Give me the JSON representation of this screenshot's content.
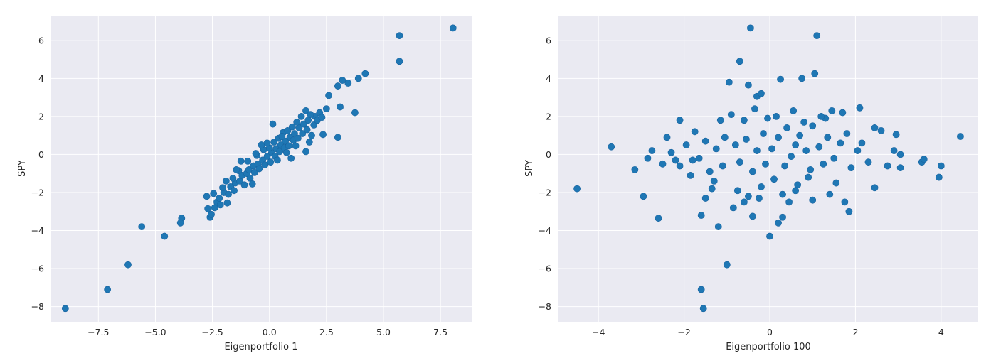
{
  "chart_data": [
    {
      "type": "scatter",
      "xlabel": "Eigenportfolio 1",
      "ylabel": "SPY",
      "xlim": [
        -9.6,
        8.9
      ],
      "ylim": [
        -8.8,
        7.3
      ],
      "xticks": [
        -7.5,
        -5.0,
        -2.5,
        0.0,
        2.5,
        5.0,
        7.5
      ],
      "xtick_labels": [
        "−7.5",
        "−5.0",
        "−2.5",
        "0.0",
        "2.5",
        "5.0",
        "7.5"
      ],
      "yticks": [
        -8,
        -6,
        -4,
        -2,
        0,
        2,
        4,
        6
      ],
      "ytick_labels": [
        "−8",
        "−6",
        "−4",
        "−2",
        "0",
        "2",
        "4",
        "6"
      ],
      "grid": true,
      "color": "#1f77b4",
      "points": [
        [
          -8.95,
          -8.1
        ],
        [
          -7.1,
          -7.1
        ],
        [
          -6.2,
          -5.8
        ],
        [
          -5.6,
          -3.8
        ],
        [
          -4.6,
          -4.3
        ],
        [
          -3.85,
          -3.35
        ],
        [
          -3.9,
          -3.6
        ],
        [
          -2.7,
          -2.85
        ],
        [
          -2.6,
          -3.3
        ],
        [
          -2.55,
          -3.15
        ],
        [
          -2.4,
          -2.8
        ],
        [
          -2.3,
          -2.5
        ],
        [
          -2.2,
          -2.3
        ],
        [
          -2.0,
          -2.0
        ],
        [
          -1.8,
          -2.1
        ],
        [
          -1.7,
          -1.7
        ],
        [
          -1.5,
          -1.5
        ],
        [
          -1.3,
          -1.4
        ],
        [
          -1.2,
          -1.1
        ],
        [
          -1.0,
          -1.0
        ],
        [
          -0.9,
          -0.8
        ],
        [
          -0.7,
          -0.6
        ],
        [
          -0.5,
          -0.5
        ],
        [
          -0.3,
          -0.3
        ],
        [
          -0.1,
          -0.1
        ],
        [
          0.1,
          0.1
        ],
        [
          0.3,
          0.3
        ],
        [
          0.5,
          0.5
        ],
        [
          0.7,
          0.7
        ],
        [
          0.9,
          0.9
        ],
        [
          1.1,
          1.1
        ],
        [
          1.3,
          1.4
        ],
        [
          1.5,
          1.6
        ],
        [
          1.7,
          1.8
        ],
        [
          2.0,
          2.0
        ],
        [
          2.2,
          2.2
        ],
        [
          2.5,
          2.4
        ],
        [
          2.6,
          3.1
        ],
        [
          3.0,
          0.9
        ],
        [
          3.1,
          2.5
        ],
        [
          3.2,
          3.9
        ],
        [
          3.45,
          3.75
        ],
        [
          3.0,
          3.6
        ],
        [
          3.75,
          2.2
        ],
        [
          3.9,
          4.0
        ],
        [
          4.2,
          4.25
        ],
        [
          5.7,
          6.25
        ],
        [
          5.7,
          4.9
        ],
        [
          8.05,
          6.65
        ],
        [
          -2.75,
          -2.2
        ],
        [
          -2.15,
          -2.65
        ],
        [
          -2.05,
          -1.75
        ],
        [
          -1.85,
          -2.55
        ],
        [
          -1.6,
          -1.25
        ],
        [
          -1.55,
          -1.9
        ],
        [
          -1.35,
          -0.85
        ],
        [
          -1.1,
          -1.6
        ],
        [
          -0.95,
          -0.35
        ],
        [
          -0.85,
          -1.25
        ],
        [
          -0.65,
          -0.95
        ],
        [
          -0.55,
          -0.05
        ],
        [
          -0.45,
          -0.75
        ],
        [
          -0.25,
          0.25
        ],
        [
          -0.2,
          -0.55
        ],
        [
          0.0,
          0.35
        ],
        [
          0.05,
          -0.4
        ],
        [
          0.2,
          0.65
        ],
        [
          0.25,
          -0.1
        ],
        [
          0.4,
          0.85
        ],
        [
          0.45,
          0.15
        ],
        [
          0.6,
          1.15
        ],
        [
          0.65,
          0.35
        ],
        [
          0.8,
          1.25
        ],
        [
          0.85,
          0.45
        ],
        [
          1.0,
          1.45
        ],
        [
          1.05,
          0.75
        ],
        [
          1.2,
          1.7
        ],
        [
          1.25,
          0.85
        ],
        [
          1.4,
          2.0
        ],
        [
          1.45,
          1.1
        ],
        [
          1.6,
          2.3
        ],
        [
          1.65,
          1.3
        ],
        [
          1.8,
          2.1
        ],
        [
          1.85,
          1.0
        ],
        [
          1.95,
          1.55
        ],
        [
          2.1,
          1.8
        ],
        [
          2.3,
          1.95
        ],
        [
          2.35,
          1.05
        ],
        [
          1.6,
          0.15
        ],
        [
          1.75,
          0.65
        ],
        [
          0.15,
          1.6
        ],
        [
          0.75,
          0.1
        ],
        [
          -0.35,
          0.5
        ],
        [
          0.95,
          -0.2
        ],
        [
          -1.25,
          -0.35
        ],
        [
          -0.75,
          -1.55
        ],
        [
          -1.45,
          -0.8
        ],
        [
          -1.9,
          -1.4
        ],
        [
          -2.45,
          -2.05
        ],
        [
          -0.1,
          0.6
        ],
        [
          0.35,
          -0.3
        ],
        [
          0.55,
          0.95
        ],
        [
          -0.6,
          0.05
        ],
        [
          1.15,
          0.45
        ]
      ]
    },
    {
      "type": "scatter",
      "xlabel": "Eigenportfolio 100",
      "ylabel": "SPY",
      "xlim": [
        -4.95,
        4.85
      ],
      "ylim": [
        -8.8,
        7.3
      ],
      "xticks": [
        -4,
        -2,
        0,
        2,
        4
      ],
      "xtick_labels": [
        "−4",
        "−2",
        "0",
        "2",
        "4"
      ],
      "yticks": [
        -8,
        -6,
        -4,
        -2,
        0,
        2,
        4,
        6
      ],
      "ytick_labels": [
        "−8",
        "−6",
        "−4",
        "−2",
        "0",
        "2",
        "4",
        "6"
      ],
      "grid": true,
      "color": "#1f77b4",
      "points": [
        [
          -4.5,
          -1.8
        ],
        [
          -3.7,
          0.4
        ],
        [
          -3.15,
          -0.8
        ],
        [
          -2.95,
          -2.2
        ],
        [
          -2.6,
          -3.35
        ],
        [
          -2.3,
          0.1
        ],
        [
          -2.1,
          1.8
        ],
        [
          -2.1,
          -0.6
        ],
        [
          -1.8,
          -0.3
        ],
        [
          -1.6,
          -7.1
        ],
        [
          -1.55,
          -8.1
        ],
        [
          -1.6,
          -3.2
        ],
        [
          -1.5,
          -2.3
        ],
        [
          -1.3,
          -1.4
        ],
        [
          -1.2,
          -3.8
        ],
        [
          -1.15,
          1.8
        ],
        [
          -1.0,
          -5.8
        ],
        [
          -0.95,
          3.8
        ],
        [
          -0.85,
          -2.8
        ],
        [
          -0.7,
          4.9
        ],
        [
          -0.6,
          -2.5
        ],
        [
          -0.45,
          6.65
        ],
        [
          -0.5,
          3.65
        ],
        [
          -0.4,
          -3.25
        ],
        [
          -0.3,
          3.05
        ],
        [
          -0.2,
          3.2
        ],
        [
          -0.25,
          -2.3
        ],
        [
          -0.05,
          1.9
        ],
        [
          0.0,
          -4.3
        ],
        [
          0.2,
          -3.6
        ],
        [
          0.25,
          3.95
        ],
        [
          0.3,
          -3.3
        ],
        [
          0.45,
          -2.5
        ],
        [
          0.6,
          0.5
        ],
        [
          0.75,
          4.0
        ],
        [
          0.9,
          -1.2
        ],
        [
          1.05,
          4.25
        ],
        [
          1.1,
          6.25
        ],
        [
          1.3,
          1.9
        ],
        [
          1.45,
          2.3
        ],
        [
          1.55,
          -1.5
        ],
        [
          1.7,
          2.2
        ],
        [
          1.75,
          -2.5
        ],
        [
          1.85,
          -3.0
        ],
        [
          2.1,
          2.45
        ],
        [
          2.15,
          0.6
        ],
        [
          2.3,
          -0.4
        ],
        [
          2.45,
          1.4
        ],
        [
          2.6,
          1.25
        ],
        [
          2.75,
          -0.6
        ],
        [
          2.9,
          0.2
        ],
        [
          2.95,
          1.05
        ],
        [
          3.05,
          -0.7
        ],
        [
          3.05,
          0.0
        ],
        [
          3.55,
          -0.4
        ],
        [
          3.6,
          -0.25
        ],
        [
          3.95,
          -1.2
        ],
        [
          4.0,
          -0.6
        ],
        [
          4.45,
          0.95
        ],
        [
          2.45,
          -1.75
        ],
        [
          -0.8,
          0.5
        ],
        [
          -0.7,
          -0.4
        ],
        [
          -0.55,
          0.8
        ],
        [
          -0.4,
          -0.9
        ],
        [
          -0.3,
          0.2
        ],
        [
          -0.15,
          1.1
        ],
        [
          -0.1,
          -0.5
        ],
        [
          0.05,
          0.3
        ],
        [
          0.1,
          -1.3
        ],
        [
          0.2,
          0.9
        ],
        [
          0.35,
          -0.6
        ],
        [
          0.4,
          1.4
        ],
        [
          0.5,
          -0.1
        ],
        [
          0.65,
          -1.6
        ],
        [
          0.7,
          1.0
        ],
        [
          0.85,
          0.2
        ],
        [
          0.95,
          -0.8
        ],
        [
          1.0,
          1.5
        ],
        [
          1.15,
          0.4
        ],
        [
          1.25,
          -0.5
        ],
        [
          1.35,
          0.9
        ],
        [
          1.5,
          -0.2
        ],
        [
          1.65,
          0.6
        ],
        [
          1.8,
          1.1
        ],
        [
          1.9,
          -0.7
        ],
        [
          2.05,
          0.2
        ],
        [
          -1.05,
          0.9
        ],
        [
          -1.1,
          -0.6
        ],
        [
          -1.25,
          0.3
        ],
        [
          -1.4,
          -0.9
        ],
        [
          -1.5,
          0.7
        ],
        [
          -1.65,
          -0.2
        ],
        [
          -1.75,
          1.2
        ],
        [
          -1.85,
          -1.1
        ],
        [
          -1.95,
          0.5
        ],
        [
          -2.2,
          -0.3
        ],
        [
          -2.4,
          0.9
        ],
        [
          -2.5,
          -0.5
        ],
        [
          -2.75,
          0.2
        ],
        [
          -2.85,
          -0.2
        ],
        [
          -0.9,
          2.1
        ],
        [
          -0.6,
          1.8
        ],
        [
          -0.35,
          2.4
        ],
        [
          0.15,
          2.0
        ],
        [
          0.55,
          2.3
        ],
        [
          0.8,
          1.7
        ],
        [
          1.2,
          2.0
        ],
        [
          -0.75,
          -1.9
        ],
        [
          -0.5,
          -2.2
        ],
        [
          -0.2,
          -1.7
        ],
        [
          0.3,
          -2.1
        ],
        [
          0.6,
          -1.9
        ],
        [
          1.0,
          -2.4
        ],
        [
          1.4,
          -2.1
        ],
        [
          -1.35,
          -1.8
        ]
      ]
    }
  ]
}
